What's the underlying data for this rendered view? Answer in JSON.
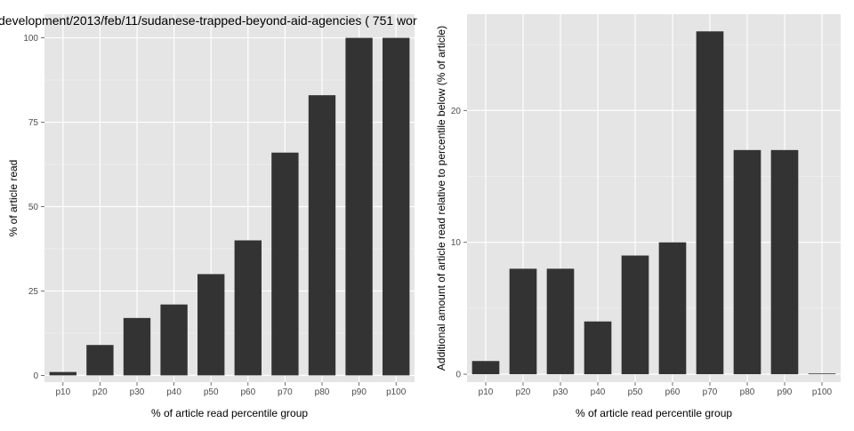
{
  "chart_data": [
    {
      "type": "bar",
      "title": "development/2013/feb/11/sudanese-trapped-beyond-aid-agencies ( 751 wor",
      "xlabel": "% of article read percentile group",
      "ylabel": "% of article read",
      "categories": [
        "p10",
        "p20",
        "p30",
        "p40",
        "p50",
        "p60",
        "p70",
        "p80",
        "p90",
        "p100"
      ],
      "values": [
        1,
        9,
        17,
        21,
        30,
        40,
        66,
        83,
        100,
        100
      ],
      "ylim": [
        -2,
        107
      ],
      "yticks": [
        0,
        25,
        50,
        75,
        100
      ],
      "ytick_labels": [
        "0",
        "25",
        "50",
        "75",
        "100"
      ],
      "grid": true,
      "colors": {
        "bar": "#333333",
        "panel": "#e5e5e5",
        "grid": "#ffffff"
      }
    },
    {
      "type": "bar",
      "title": "",
      "xlabel": "% of article read percentile group",
      "ylabel": "Additional amount of article read relative to percentile below (% of article)",
      "categories": [
        "p10",
        "p20",
        "p30",
        "p40",
        "p50",
        "p60",
        "p70",
        "p80",
        "p90",
        "p100"
      ],
      "values": [
        1,
        8,
        8,
        4,
        9,
        10,
        26,
        17,
        17,
        0.05
      ],
      "ylim": [
        -0.6,
        27.3
      ],
      "yticks": [
        0,
        10,
        20
      ],
      "ytick_labels": [
        "0",
        "10",
        "20"
      ],
      "grid": true,
      "colors": {
        "bar": "#333333",
        "panel": "#e5e5e5",
        "grid": "#ffffff"
      }
    }
  ]
}
